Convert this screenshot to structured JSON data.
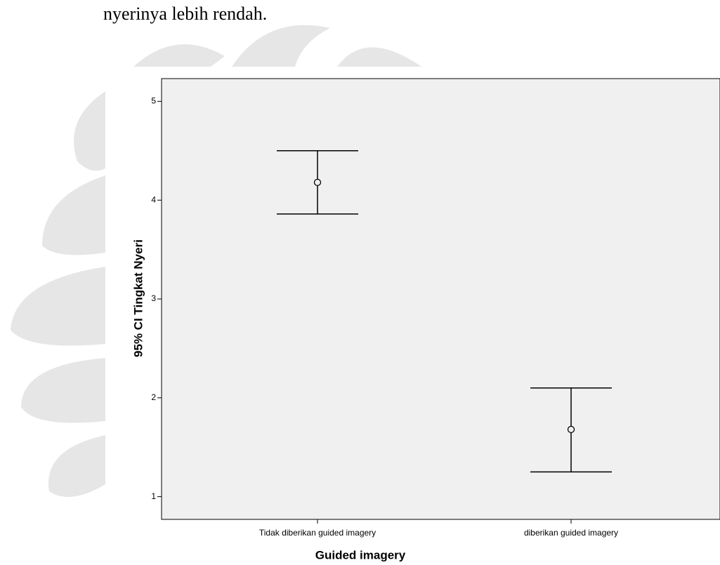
{
  "document_text": "nyerinya lebih rendah.",
  "chart_data": {
    "type": "errorbar",
    "x_label": "Guided imagery",
    "y_label": "95% CI Tingkat Nyeri",
    "categories": [
      "Tidak diberikan guided imagery",
      "diberikan guided imagery"
    ],
    "values": [
      4.18,
      1.68
    ],
    "ci_lower": [
      3.86,
      1.25
    ],
    "ci_upper": [
      4.5,
      2.1
    ],
    "color": "#000000",
    "background": "#f0f0f0",
    "ylim": [
      0.77,
      5.23
    ],
    "yticks": [
      1,
      2,
      3,
      4,
      5
    ]
  }
}
